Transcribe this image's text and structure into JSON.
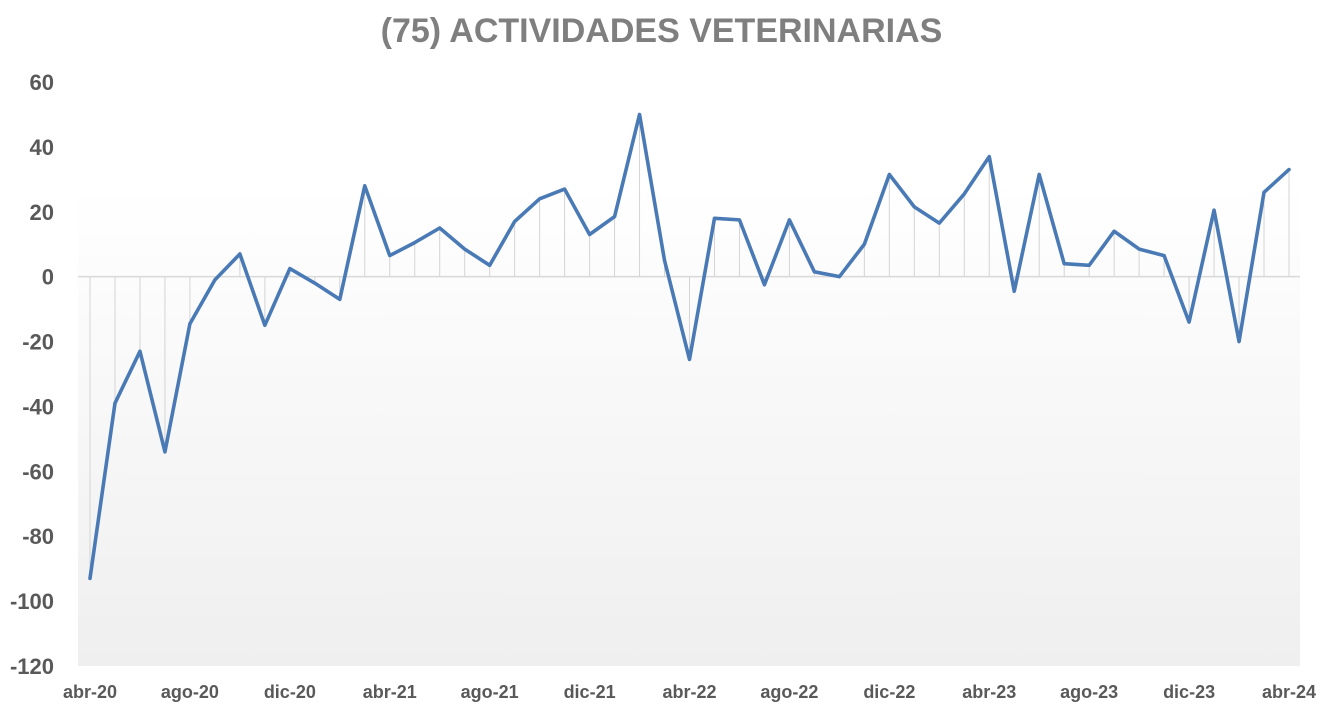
{
  "chart_data": {
    "type": "line",
    "title": "(75) ACTIVIDADES VETERINARIAS",
    "xlabel": "",
    "ylabel": "",
    "ylim": [
      -120,
      60
    ],
    "yticks": [
      "60",
      "40",
      "20",
      "0",
      "-20",
      "-40",
      "-60",
      "-80",
      "-100",
      "-120"
    ],
    "xtick_labels": [
      "abr-20",
      "ago-20",
      "dic-20",
      "abr-21",
      "ago-21",
      "dic-21",
      "abr-22",
      "ago-22",
      "dic-22",
      "abr-23",
      "ago-23",
      "dic-23",
      "abr-24"
    ],
    "grid": false,
    "drop_lines": true,
    "categories": [
      "abr-20",
      "may-20",
      "jun-20",
      "jul-20",
      "ago-20",
      "sep-20",
      "oct-20",
      "nov-20",
      "dic-20",
      "ene-21",
      "feb-21",
      "mar-21",
      "abr-21",
      "may-21",
      "jun-21",
      "jul-21",
      "ago-21",
      "sep-21",
      "oct-21",
      "nov-21",
      "dic-21",
      "ene-22",
      "feb-22",
      "mar-22",
      "abr-22",
      "may-22",
      "jun-22",
      "jul-22",
      "ago-22",
      "sep-22",
      "oct-22",
      "nov-22",
      "dic-22",
      "ene-23",
      "feb-23",
      "mar-23",
      "abr-23",
      "may-23",
      "jun-23",
      "jul-23",
      "ago-23",
      "sep-23",
      "oct-23",
      "nov-23",
      "dic-23",
      "ene-24",
      "feb-24",
      "mar-24",
      "abr-24"
    ],
    "series": [
      {
        "color": "#4a7ab5",
        "values": [
          -93,
          -39,
          -23,
          -54,
          -14.5,
          -1,
          7,
          -15,
          2.5,
          -2,
          -7,
          28,
          6.5,
          10.5,
          15,
          8.5,
          3.5,
          17,
          24,
          27,
          13,
          18.5,
          50,
          5,
          -25.5,
          18,
          17.5,
          -2.5,
          17.5,
          1.5,
          0,
          10,
          31.5,
          21.5,
          16.5,
          25.5,
          37,
          -4.5,
          31.5,
          4,
          3.5,
          14,
          8.5,
          6.5,
          -14,
          20.5,
          -20,
          26,
          33
        ]
      }
    ]
  }
}
